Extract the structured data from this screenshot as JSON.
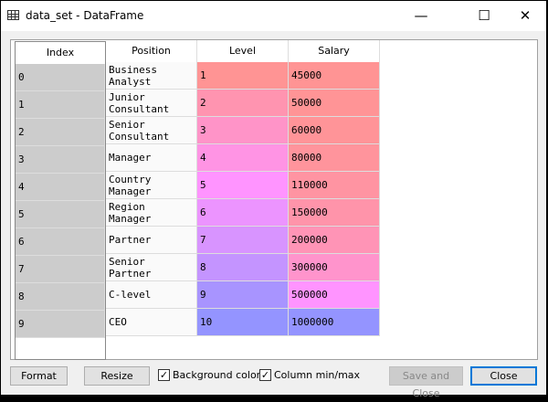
{
  "window": {
    "title": "data_set - DataFrame",
    "minimize": "—",
    "maximize": "☐",
    "close": "✕"
  },
  "table": {
    "index_header": "Index",
    "columns": [
      "Position",
      "Level",
      "Salary"
    ],
    "rows": [
      {
        "index": "0",
        "position": "Business\nAnalyst",
        "level": "1",
        "salary": "45000",
        "level_color": "#ff9494",
        "salary_color": "#ff9494"
      },
      {
        "index": "1",
        "position": "Junior\nConsultant",
        "level": "2",
        "salary": "50000",
        "level_color": "#ff94b0",
        "salary_color": "#ff9496"
      },
      {
        "index": "2",
        "position": "Senior\nConsultant",
        "level": "3",
        "salary": "60000",
        "level_color": "#ff94c8",
        "salary_color": "#ff9498"
      },
      {
        "index": "3",
        "position": "Manager",
        "level": "4",
        "salary": "80000",
        "level_color": "#ff94e4",
        "salary_color": "#ff949c"
      },
      {
        "index": "4",
        "position": "Country\nManager",
        "level": "5",
        "salary": "110000",
        "level_color": "#ff94ff",
        "salary_color": "#ff94a2"
      },
      {
        "index": "5",
        "position": "Region\nManager",
        "level": "6",
        "salary": "150000",
        "level_color": "#ec94ff",
        "salary_color": "#ff94aa"
      },
      {
        "index": "6",
        "position": "Partner",
        "level": "7",
        "salary": "200000",
        "level_color": "#d894ff",
        "salary_color": "#ff94b6"
      },
      {
        "index": "7",
        "position": "Senior\nPartner",
        "level": "8",
        "salary": "300000",
        "level_color": "#c494ff",
        "salary_color": "#ff94cc"
      },
      {
        "index": "8",
        "position": "C-level",
        "level": "9",
        "salary": "500000",
        "level_color": "#a894ff",
        "salary_color": "#ff94ff"
      },
      {
        "index": "9",
        "position": "CEO",
        "level": "10",
        "salary": "1000000",
        "level_color": "#9494ff",
        "salary_color": "#9494ff"
      }
    ]
  },
  "footer": {
    "format": "Format",
    "resize": "Resize",
    "bg_color": "Background color",
    "bg_color_checked": true,
    "minmax": "Column min/max",
    "minmax_checked": true,
    "save_close": "Save and Close",
    "close": "Close",
    "check": "✓"
  }
}
